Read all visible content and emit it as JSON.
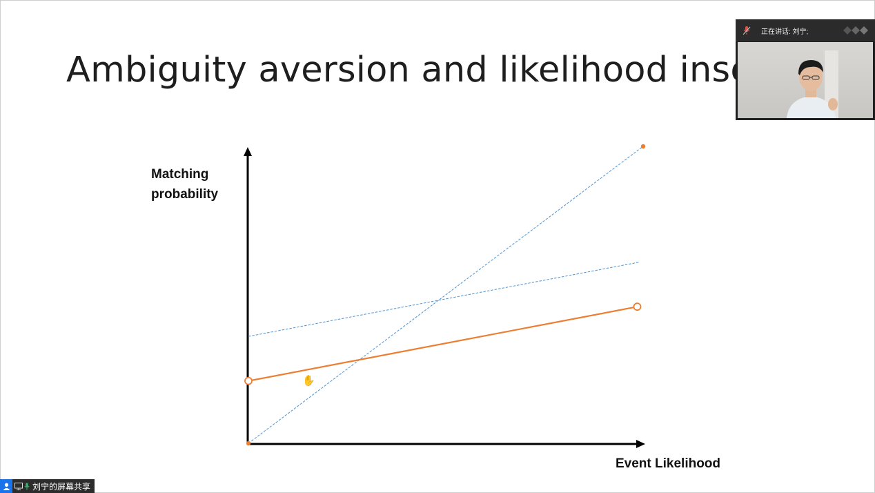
{
  "slide": {
    "title": "Ambiguity aversion and likelihood insensit"
  },
  "chart_data": {
    "type": "line",
    "xlabel": "Event Likelihood",
    "ylabel": "Matching probability",
    "xlim": [
      0,
      1
    ],
    "ylim": [
      0,
      1
    ],
    "grid": false,
    "series": [
      {
        "style": "dashed",
        "color": "#5b9bd5",
        "x": [
          0,
          1
        ],
        "y": [
          0,
          1
        ]
      },
      {
        "style": "dashed",
        "color": "#5b9bd5",
        "x": [
          0,
          0.99
        ],
        "y": [
          0.36,
          0.61
        ]
      },
      {
        "style": "solid",
        "color": "#ed7d31",
        "x": [
          0,
          0.985
        ],
        "y": [
          0.21,
          0.46
        ],
        "markers": "open-circle"
      }
    ]
  },
  "video": {
    "speaking_label": "正在讲话: 刘宁;",
    "participant_name": "刘宁"
  },
  "share_bar": {
    "label": "刘宁的屏幕共享"
  },
  "icons": {
    "mic": "mic-icon",
    "user": "user-icon",
    "hand_cursor": "hand-cursor-icon"
  }
}
